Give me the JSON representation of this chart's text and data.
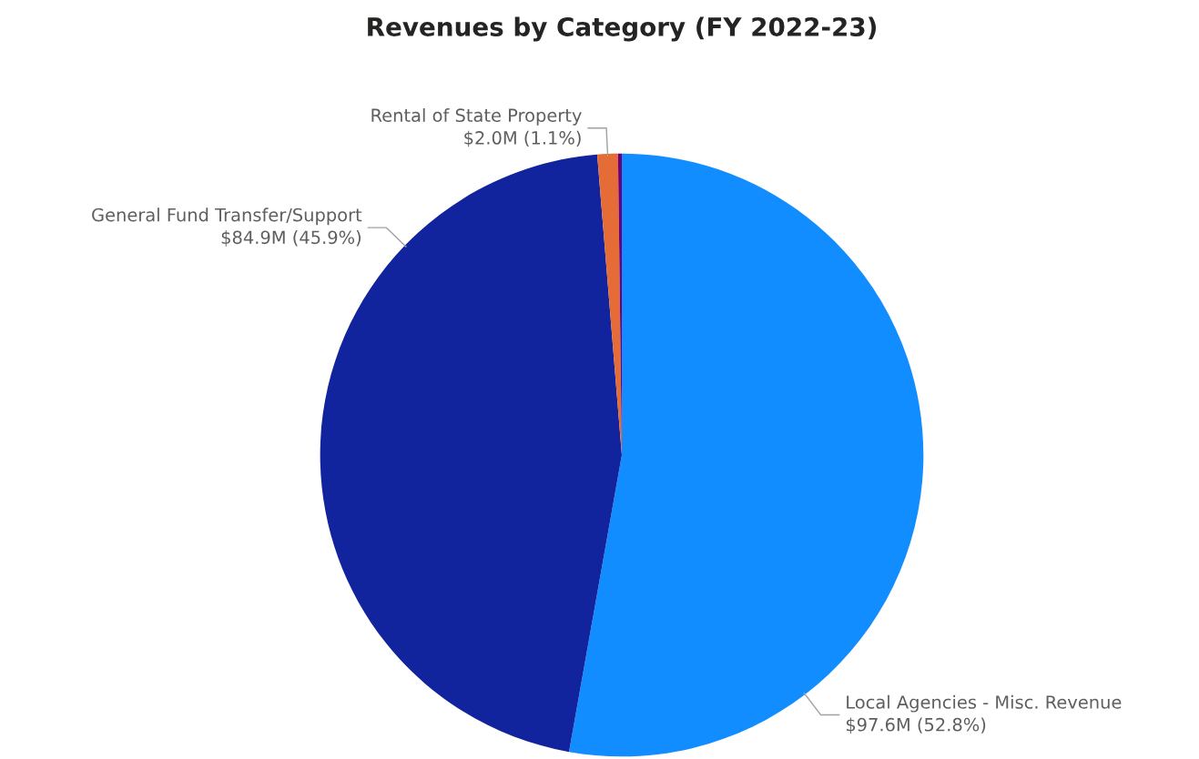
{
  "chart_data": {
    "type": "pie",
    "title": "Revenues by Category (FY 2022-23)",
    "categories": [
      "Local Agencies - Misc. Revenue",
      "General Fund Transfer/Support",
      "Rental of State Property",
      null
    ],
    "values": [
      52.8,
      45.9,
      1.1,
      0.2
    ],
    "value_labels": [
      "$97.6M (52.8%)",
      "$84.9M (45.9%)",
      "$2.0M (1.1%)",
      null
    ],
    "colors": [
      "#118dff",
      "#12239e",
      "#e66c37",
      "#6b007b"
    ],
    "legend": false
  }
}
